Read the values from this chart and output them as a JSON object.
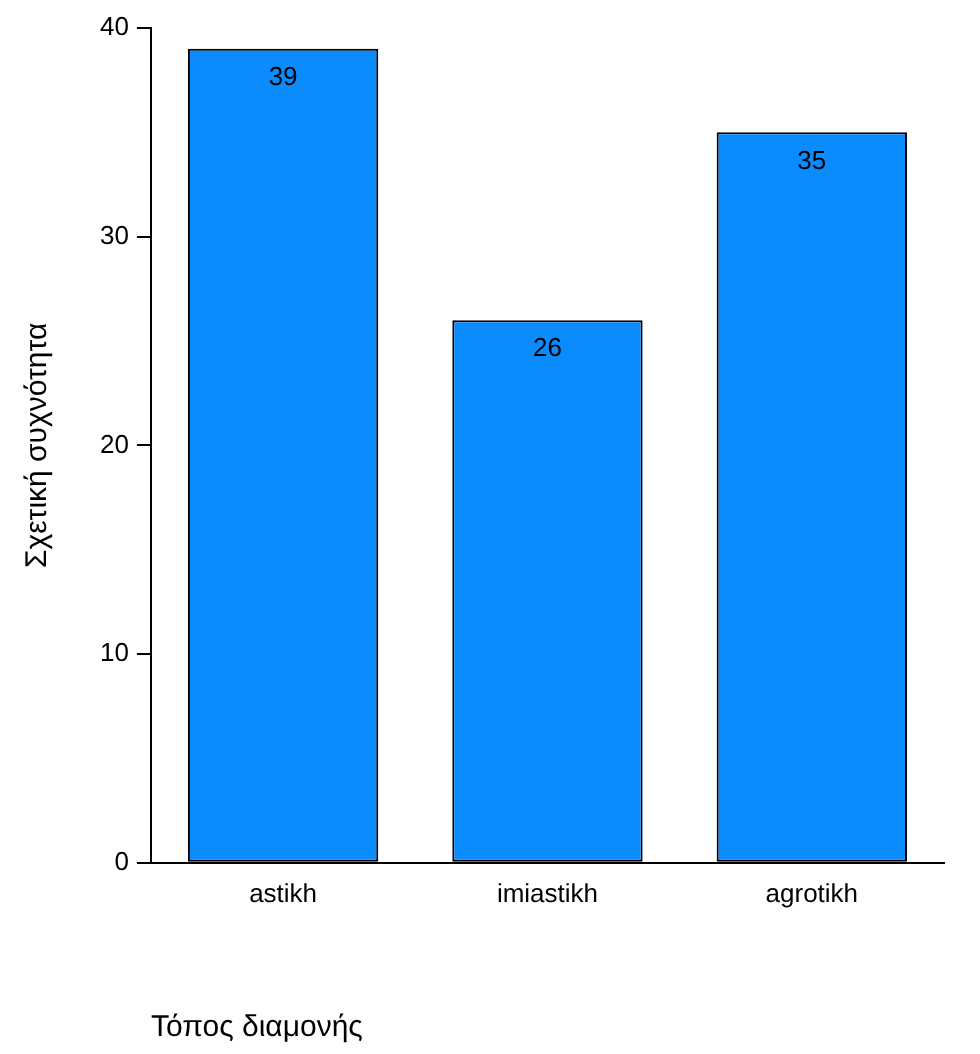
{
  "chart_data": {
    "type": "bar",
    "categories": [
      "astikh",
      "imiastikh",
      "agrotikh"
    ],
    "values": [
      39,
      26,
      35
    ],
    "color": "#0a8cff",
    "xlabel": "Τόπος διαμονής",
    "ylabel": "Σχετική συχνότητα",
    "ylim": [
      0,
      40
    ],
    "yticks": [
      0,
      10,
      20,
      30,
      40
    ],
    "grid": false,
    "legend": false,
    "data_labels": true
  }
}
